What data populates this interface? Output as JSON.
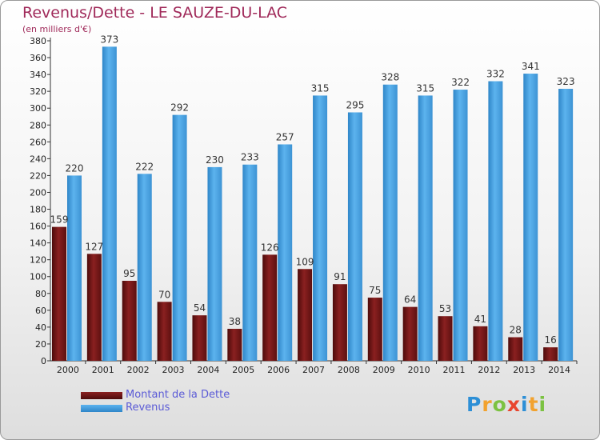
{
  "header": {
    "title": "Revenus/Dette - LE SAUZE-DU-LAC",
    "subtitle": "(en milliers d'€)"
  },
  "legend": {
    "debt_label": "Montant de la Dette",
    "revenue_label": "Revenus"
  },
  "logo": {
    "text": "Proxiti"
  },
  "colors": {
    "debt": "#7a1a1a",
    "revenue": "#4aa3e3"
  },
  "chart_data": {
    "type": "bar",
    "categories": [
      "2000",
      "2001",
      "2002",
      "2003",
      "2004",
      "2005",
      "2006",
      "2007",
      "2008",
      "2009",
      "2010",
      "2011",
      "2012",
      "2013",
      "2014"
    ],
    "series": [
      {
        "name": "Montant de la Dette",
        "values": [
          159,
          127,
          95,
          70,
          54,
          38,
          126,
          109,
          91,
          75,
          64,
          53,
          41,
          28,
          16
        ]
      },
      {
        "name": "Revenus",
        "values": [
          220,
          373,
          222,
          292,
          230,
          233,
          257,
          315,
          295,
          328,
          315,
          322,
          332,
          341,
          323
        ]
      }
    ],
    "title": "Revenus/Dette - LE SAUZE-DU-LAC",
    "ylabel": "(en milliers d'€)",
    "ylim": [
      0,
      380
    ],
    "yticks": [
      0,
      20,
      40,
      60,
      80,
      100,
      120,
      140,
      160,
      180,
      200,
      220,
      240,
      260,
      280,
      300,
      320,
      340,
      360,
      380
    ],
    "grid": false,
    "legend_position": "bottom-left"
  }
}
